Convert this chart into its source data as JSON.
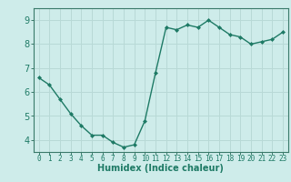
{
  "x": [
    0,
    1,
    2,
    3,
    4,
    5,
    6,
    7,
    8,
    9,
    10,
    11,
    12,
    13,
    14,
    15,
    16,
    17,
    18,
    19,
    20,
    21,
    22,
    23
  ],
  "y": [
    6.6,
    6.3,
    5.7,
    5.1,
    4.6,
    4.2,
    4.2,
    3.9,
    3.7,
    3.8,
    4.8,
    6.8,
    8.7,
    8.6,
    8.8,
    8.7,
    9.0,
    8.7,
    8.4,
    8.3,
    8.0,
    8.1,
    8.2,
    8.5
  ],
  "line_color": "#1e7a65",
  "marker": "D",
  "marker_size": 2.0,
  "linewidth": 1.0,
  "xlabel": "Humidex (Indice chaleur)",
  "xlabel_fontsize": 7,
  "xlim": [
    -0.5,
    23.5
  ],
  "ylim": [
    3.5,
    9.5
  ],
  "yticks": [
    4,
    5,
    6,
    7,
    8,
    9
  ],
  "xticks": [
    0,
    1,
    2,
    3,
    4,
    5,
    6,
    7,
    8,
    9,
    10,
    11,
    12,
    13,
    14,
    15,
    16,
    17,
    18,
    19,
    20,
    21,
    22,
    23
  ],
  "bg_color": "#ceecea",
  "grid_color": "#b8d9d6",
  "tick_color": "#1e7a65",
  "axis_color": "#3a7a6a",
  "tick_fontsize": 5.5,
  "ytick_fontsize": 7.0
}
